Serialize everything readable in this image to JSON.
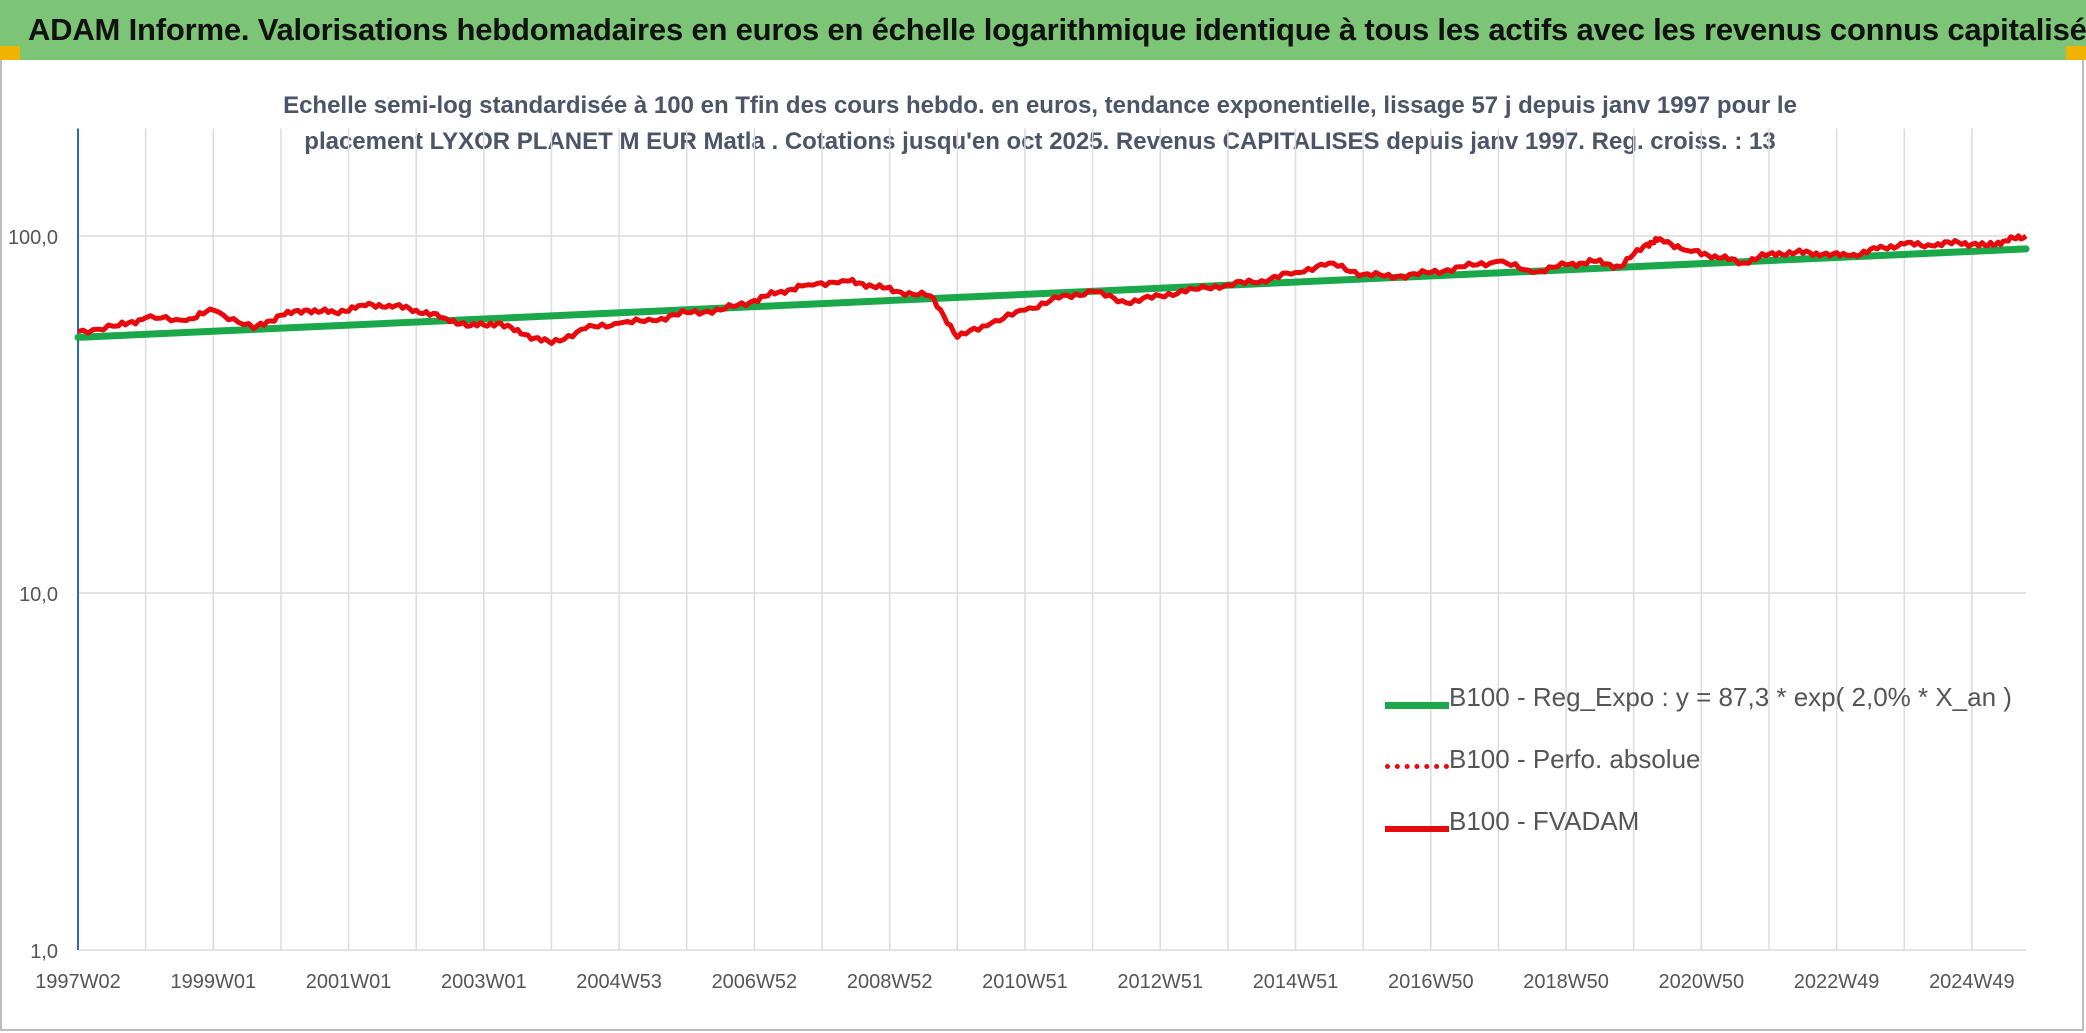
{
  "header": {
    "title": "ADAM Informe. Valorisations hebdomadaires en euros en échelle logarithmique identique à tous les actifs avec les revenus connus capitalisés"
  },
  "colors": {
    "banner": "#7cc576",
    "trend": "#1aa84b",
    "series": "#e8090d",
    "axis": "#2e6ab4"
  },
  "chart_data": {
    "type": "line",
    "title_lines": [
      "Echelle semi-log standardisée à 100 en Tfin des cours hebdo. en euros, tendance exponentielle, lissage 57 j depuis janv 1997 pour le",
      "placement LYXOR PLANET M EUR Matla . Cotations jusqu'en oct 2025. Revenus CAPITALISES depuis janv 1997. Reg. croiss. : 13"
    ],
    "y_scale": "log",
    "ylim": [
      1,
      100
    ],
    "ylim_display_max": 200,
    "y_ticks": [
      {
        "value": 1,
        "label": "1,0"
      },
      {
        "value": 10,
        "label": "10,0"
      },
      {
        "value": 100,
        "label": "100,0"
      }
    ],
    "x_range": [
      1997.0,
      2025.8
    ],
    "x_ticks": [
      {
        "x": 1997.0,
        "label": "1997W02"
      },
      {
        "x": 1999.0,
        "label": "1999W01"
      },
      {
        "x": 2001.0,
        "label": "2001W01"
      },
      {
        "x": 2003.0,
        "label": "2003W01"
      },
      {
        "x": 2005.0,
        "label": "2004W53"
      },
      {
        "x": 2007.0,
        "label": "2006W52"
      },
      {
        "x": 2009.0,
        "label": "2008W52"
      },
      {
        "x": 2011.0,
        "label": "2010W51"
      },
      {
        "x": 2013.0,
        "label": "2012W51"
      },
      {
        "x": 2015.0,
        "label": "2014W51"
      },
      {
        "x": 2017.0,
        "label": "2016W50"
      },
      {
        "x": 2019.0,
        "label": "2018W50"
      },
      {
        "x": 2021.0,
        "label": "2020W50"
      },
      {
        "x": 2023.0,
        "label": "2022W49"
      },
      {
        "x": 2025.0,
        "label": "2024W49"
      }
    ],
    "grid": true,
    "series": [
      {
        "name": "B100 - Reg_Expo : y = 87,3 * exp( 2,0% *  X_an )",
        "style": "solid-thick",
        "x": [
          1997.0,
          2025.8
        ],
        "values": [
          52,
          92
        ]
      },
      {
        "name": "B100 - Perfo. absolue",
        "style": "dotted",
        "x": [],
        "values": []
      },
      {
        "name": "B100 - FVADAM",
        "style": "solid",
        "x": [
          1997.0,
          1997.6,
          1998.0,
          1998.6,
          1999.0,
          1999.6,
          2000.0,
          2000.4,
          2000.8,
          2001.2,
          2001.6,
          2002.0,
          2002.4,
          2002.8,
          2003.2,
          2003.6,
          2004.0,
          2004.5,
          2005.0,
          2005.5,
          2006.0,
          2006.5,
          2007.0,
          2007.4,
          2007.8,
          2008.3,
          2008.7,
          2009.1,
          2009.6,
          2010.0,
          2010.5,
          2011.0,
          2011.5,
          2012.0,
          2012.5,
          2013.0,
          2013.5,
          2014.0,
          2014.5,
          2015.0,
          2015.5,
          2016.0,
          2016.5,
          2017.0,
          2017.5,
          2018.0,
          2018.5,
          2019.0,
          2019.4,
          2019.8,
          2020.2,
          2020.4,
          2020.8,
          2021.2,
          2021.6,
          2022.0,
          2022.4,
          2022.8,
          2023.2,
          2023.6,
          2024.0,
          2024.4,
          2024.8,
          2025.2,
          2025.5,
          2025.8
        ],
        "values": [
          54,
          56,
          59,
          58,
          62,
          55,
          60,
          62,
          61,
          64,
          64,
          62,
          59,
          56,
          57,
          53,
          50,
          55,
          57,
          58,
          61,
          62,
          66,
          70,
          73,
          75,
          73,
          70,
          68,
          52,
          57,
          62,
          67,
          70,
          65,
          68,
          71,
          73,
          75,
          79,
          84,
          78,
          77,
          79,
          82,
          85,
          79,
          83,
          85,
          82,
          95,
          98,
          91,
          88,
          84,
          89,
          90,
          89,
          88,
          92,
          95,
          94,
          96,
          94,
          97,
          100
        ]
      }
    ]
  }
}
